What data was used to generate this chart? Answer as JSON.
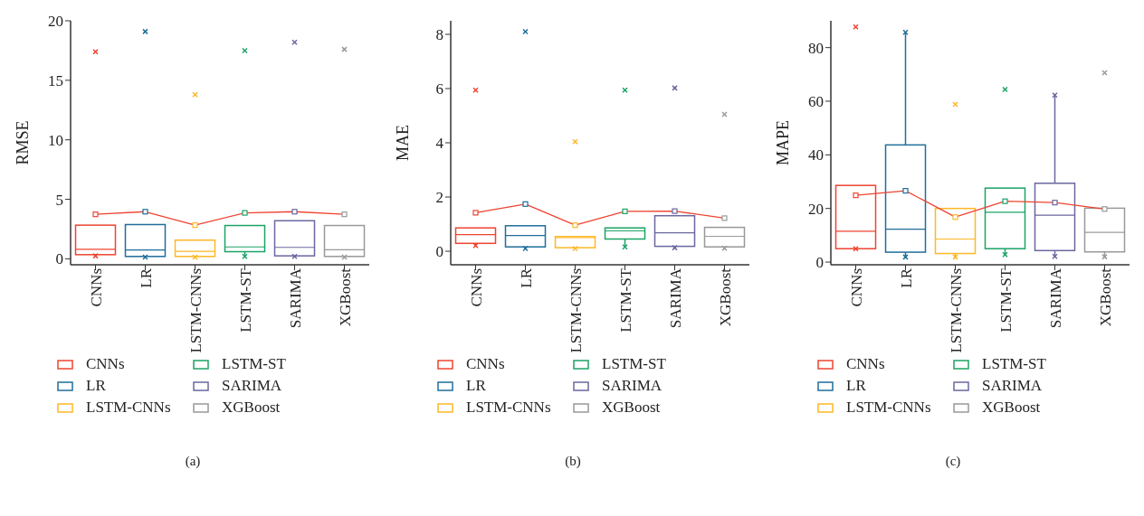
{
  "chart_data": [
    {
      "type": "box",
      "ylabel": "RMSE",
      "categories": [
        "CNNs",
        "LR",
        "LSTM-CNNs",
        "LSTM-ST",
        "SARIMA",
        "XGBoost"
      ],
      "ylim": [
        -0.5,
        20
      ],
      "yticks": [
        0,
        5,
        10,
        15,
        20
      ],
      "legend": "bottom",
      "annotations": [
        "(a)"
      ],
      "series": [
        {
          "name": "CNNs",
          "color": "#ee4431",
          "boxes": [
            {
              "low": 0.25,
              "q1": 0.35,
              "median": 0.8,
              "q3": 2.83,
              "high": 2.83
            },
            null,
            null,
            null,
            null,
            null
          ]
        },
        {
          "name": "LR",
          "color": "#1f6e9c",
          "boxes": [
            null,
            {
              "low": 0.15,
              "q1": 0.2,
              "median": 0.75,
              "q3": 2.88,
              "high": 2.88
            },
            null,
            null,
            null,
            null
          ]
        },
        {
          "name": "LSTM-CNNs",
          "color": "#fdb827",
          "boxes": [
            null,
            null,
            {
              "low": 0.15,
              "q1": 0.2,
              "median": 0.63,
              "q3": 1.57,
              "high": 1.57
            },
            null,
            null,
            null
          ]
        },
        {
          "name": "LSTM-ST",
          "color": "#1ba366",
          "boxes": [
            null,
            null,
            null,
            {
              "low": 0.2,
              "q1": 0.6,
              "median": 1.0,
              "q3": 2.8,
              "high": 2.8
            },
            null,
            null
          ]
        },
        {
          "name": "SARIMA",
          "color": "#6a67a0",
          "boxes": [
            null,
            null,
            null,
            null,
            {
              "low": 0.2,
              "q1": 0.25,
              "median": 0.96,
              "q3": 3.2,
              "high": 3.2
            },
            null
          ]
        },
        {
          "name": "XGBoost",
          "color": "#999999",
          "boxes": [
            null,
            null,
            null,
            null,
            null,
            {
              "low": 0.15,
              "q1": 0.2,
              "median": 0.76,
              "q3": 2.8,
              "high": 2.8
            }
          ]
        },
        {
          "type": "scatter",
          "color": "#ee4431",
          "marker": "cross",
          "colors": [
            "#ee4431",
            "#1f6e9c",
            "#fdb827",
            "#1ba366",
            "#6a67a0",
            "#999999"
          ],
          "values": [
            0.25,
            0.15,
            0.15,
            0.2,
            0.2,
            0.15
          ]
        },
        {
          "type": "scatter",
          "color": "#ee4431",
          "marker": "cross",
          "colors": [
            "#ee4431",
            "#1f6e9c",
            "#fdb827",
            "#1ba366",
            "#6a67a0",
            "#999999"
          ],
          "values": [
            17.4,
            19.1,
            13.8,
            17.5,
            18.2,
            17.6
          ]
        },
        {
          "type": "line",
          "color": "#ee4431",
          "marker": "square",
          "colors": [
            "#ee4431",
            "#1f6e9c",
            "#fdb827",
            "#1ba366",
            "#6a67a0",
            "#999999"
          ],
          "values": [
            3.74,
            3.96,
            2.83,
            3.86,
            3.96,
            3.74
          ]
        }
      ]
    },
    {
      "type": "box",
      "ylabel": "MAE",
      "categories": [
        "CNNs",
        "LR",
        "LSTM-CNNs",
        "LSTM-ST",
        "SARIMA",
        "XGBoost"
      ],
      "ylim": [
        -0.5,
        8.5
      ],
      "yticks": [
        0,
        2,
        4,
        6,
        8
      ],
      "legend": "bottom",
      "annotations": [
        "(b)"
      ],
      "series": [
        {
          "name": "CNNs",
          "color": "#ee4431",
          "boxes": [
            {
              "low": 0.21,
              "q1": 0.29,
              "median": 0.61,
              "q3": 0.86,
              "high": 0.86
            },
            null,
            null,
            null,
            null,
            null
          ]
        },
        {
          "name": "LR",
          "color": "#1f6e9c",
          "boxes": [
            null,
            {
              "low": 0.1,
              "q1": 0.16,
              "median": 0.58,
              "q3": 0.94,
              "high": 0.94
            },
            null,
            null,
            null,
            null
          ]
        },
        {
          "name": "LSTM-CNNs",
          "color": "#fdb827",
          "boxes": [
            null,
            null,
            {
              "low": 0.1,
              "q1": 0.13,
              "median": 0.5,
              "q3": 0.54,
              "high": 0.54
            },
            null,
            null,
            null
          ]
        },
        {
          "name": "LSTM-ST",
          "color": "#1ba366",
          "boxes": [
            null,
            null,
            null,
            {
              "low": 0.16,
              "q1": 0.45,
              "median": 0.75,
              "q3": 0.86,
              "high": 0.86
            },
            null,
            null
          ]
        },
        {
          "name": "SARIMA",
          "color": "#6a67a0",
          "boxes": [
            null,
            null,
            null,
            null,
            {
              "low": 0.13,
              "q1": 0.18,
              "median": 0.68,
              "q3": 1.31,
              "high": 1.31
            },
            null
          ]
        },
        {
          "name": "XGBoost",
          "color": "#999999",
          "boxes": [
            null,
            null,
            null,
            null,
            null,
            {
              "low": 0.11,
              "q1": 0.16,
              "median": 0.55,
              "q3": 0.88,
              "high": 0.88
            }
          ]
        },
        {
          "type": "scatter",
          "color": "#ee4431",
          "marker": "cross",
          "colors": [
            "#ee4431",
            "#1f6e9c",
            "#fdb827",
            "#1ba366",
            "#6a67a0",
            "#999999"
          ],
          "values": [
            0.21,
            0.1,
            0.1,
            0.16,
            0.13,
            0.11
          ]
        },
        {
          "type": "scatter",
          "color": "#ee4431",
          "marker": "cross",
          "colors": [
            "#ee4431",
            "#1f6e9c",
            "#fdb827",
            "#1ba366",
            "#6a67a0",
            "#999999"
          ],
          "values": [
            5.94,
            8.1,
            4.04,
            5.94,
            6.02,
            5.05
          ]
        },
        {
          "type": "line",
          "color": "#ee4431",
          "marker": "square",
          "colors": [
            "#ee4431",
            "#1f6e9c",
            "#fdb827",
            "#1ba366",
            "#6a67a0",
            "#999999"
          ],
          "values": [
            1.42,
            1.74,
            0.96,
            1.47,
            1.48,
            1.22
          ]
        }
      ]
    },
    {
      "type": "box",
      "ylabel": "MAPE",
      "categories": [
        "CNNs",
        "LR",
        "LSTM-CNNs",
        "LSTM-ST",
        "SARIMA",
        "XGBoost"
      ],
      "ylim": [
        -1,
        90
      ],
      "yticks": [
        0,
        20,
        40,
        60,
        80
      ],
      "legend": "bottom",
      "annotations": [
        "(c)"
      ],
      "series": [
        {
          "name": "CNNs",
          "color": "#ee4431",
          "boxes": [
            {
              "low": 5.0,
              "q1": 5.0,
              "median": 11.5,
              "q3": 28.6,
              "high": 28.6
            },
            null,
            null,
            null,
            null,
            null
          ]
        },
        {
          "name": "LR",
          "color": "#1f6e9c",
          "boxes": [
            null,
            {
              "low": 1.9,
              "q1": 3.7,
              "median": 12.3,
              "q3": 43.7,
              "high": 85.7
            },
            null,
            null,
            null,
            null
          ]
        },
        {
          "name": "LSTM-CNNs",
          "color": "#fdb827",
          "boxes": [
            null,
            null,
            {
              "low": 1.9,
              "q1": 3.2,
              "median": 8.6,
              "q3": 20.0,
              "high": 20.0
            },
            null,
            null,
            null
          ]
        },
        {
          "name": "LSTM-ST",
          "color": "#1ba366",
          "boxes": [
            null,
            null,
            null,
            {
              "low": 2.8,
              "q1": 5.0,
              "median": 18.6,
              "q3": 27.6,
              "high": 27.6
            },
            null,
            null
          ]
        },
        {
          "name": "SARIMA",
          "color": "#6a67a0",
          "boxes": [
            null,
            null,
            null,
            null,
            {
              "low": 2.1,
              "q1": 4.3,
              "median": 17.5,
              "q3": 29.4,
              "high": 62.3
            },
            null
          ]
        },
        {
          "name": "XGBoost",
          "color": "#999999",
          "boxes": [
            null,
            null,
            null,
            null,
            null,
            {
              "low": 2.0,
              "q1": 3.8,
              "median": 11.1,
              "q3": 20.1,
              "high": 20.1
            }
          ]
        },
        {
          "type": "scatter",
          "color": "#ee4431",
          "marker": "cross",
          "colors": [
            "#ee4431",
            "#1f6e9c",
            "#fdb827",
            "#1ba366",
            "#6a67a0",
            "#999999"
          ],
          "values": [
            5.0,
            1.9,
            1.9,
            2.8,
            2.1,
            2.0
          ]
        },
        {
          "type": "scatter",
          "color": "#ee4431",
          "marker": "cross",
          "colors": [
            "#ee4431",
            "#1f6e9c",
            "#fdb827",
            "#1ba366",
            "#6a67a0",
            "#999999"
          ],
          "values": [
            87.7,
            85.7,
            58.8,
            64.4,
            62.3,
            70.6
          ]
        },
        {
          "type": "line",
          "color": "#ee4431",
          "marker": "square",
          "colors": [
            "#ee4431",
            "#1f6e9c",
            "#fdb827",
            "#1ba366",
            "#6a67a0",
            "#999999"
          ],
          "values": [
            24.9,
            26.6,
            16.8,
            22.7,
            22.2,
            19.8
          ]
        }
      ]
    }
  ]
}
